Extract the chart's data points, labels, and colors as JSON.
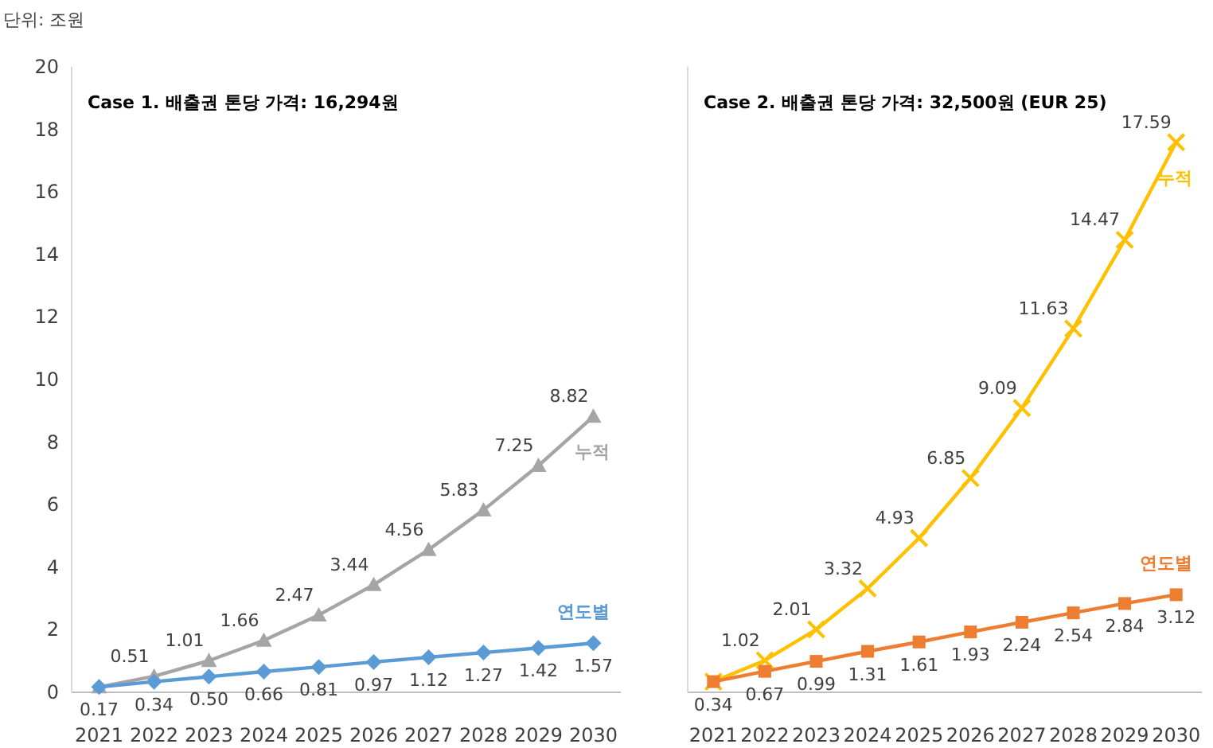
{
  "chart_data": [
    {
      "type": "line",
      "title": "Case 1. 배출권 톤당 가격: 16,294원",
      "annotations": [
        "단위: 조원"
      ],
      "categories": [
        "2021",
        "2022",
        "2023",
        "2024",
        "2025",
        "2026",
        "2027",
        "2028",
        "2029",
        "2030"
      ],
      "ylim": [
        0,
        20
      ],
      "yticks": [
        0,
        2,
        4,
        6,
        8,
        10,
        12,
        14,
        16,
        18,
        20
      ],
      "grid": false,
      "line_style": "solid",
      "series": [
        {
          "name": "누적",
          "color": "#a5a5a5",
          "marker": "triangle",
          "values": [
            0.17,
            0.51,
            1.01,
            1.66,
            2.47,
            3.44,
            4.56,
            5.83,
            7.25,
            8.82
          ],
          "value_labels": [
            null,
            "0.51",
            "1.01",
            "1.66",
            "2.47",
            "3.44",
            "4.56",
            "5.83",
            "7.25",
            "8.82"
          ]
        },
        {
          "name": "연도별",
          "color": "#5b9bd5",
          "marker": "diamond",
          "values": [
            0.17,
            0.34,
            0.5,
            0.66,
            0.81,
            0.97,
            1.12,
            1.27,
            1.42,
            1.57
          ],
          "value_labels": [
            "0.17",
            "0.34",
            "0.50",
            "0.66",
            "0.81",
            "0.97",
            "1.12",
            "1.27",
            "1.42",
            "1.57"
          ]
        }
      ]
    },
    {
      "type": "line",
      "title": "Case 2. 배출권 톤당 가격: 32,500원 (EUR 25)",
      "categories": [
        "2021",
        "2022",
        "2023",
        "2024",
        "2025",
        "2026",
        "2027",
        "2028",
        "2029",
        "2030"
      ],
      "ylim": [
        0,
        20
      ],
      "tick_labels": "x",
      "grid": false,
      "line_style": "solid",
      "series": [
        {
          "name": "누적",
          "color": "#ffc000",
          "marker": "cross",
          "values": [
            0.34,
            1.02,
            2.01,
            3.32,
            4.93,
            6.85,
            9.09,
            11.63,
            14.47,
            17.59
          ],
          "value_labels": [
            null,
            "1.02",
            "2.01",
            "3.32",
            "4.93",
            "6.85",
            "9.09",
            "11.63",
            "14.47",
            "17.59"
          ]
        },
        {
          "name": "연도별",
          "color": "#ed7d31",
          "marker": "square",
          "values": [
            0.34,
            0.67,
            0.99,
            1.31,
            1.61,
            1.93,
            2.24,
            2.54,
            2.84,
            3.12
          ],
          "value_labels": [
            "0.34",
            "0.67",
            "0.99",
            "1.31",
            "1.61",
            "1.93",
            "2.24",
            "2.54",
            "2.84",
            "3.12"
          ]
        }
      ]
    }
  ]
}
